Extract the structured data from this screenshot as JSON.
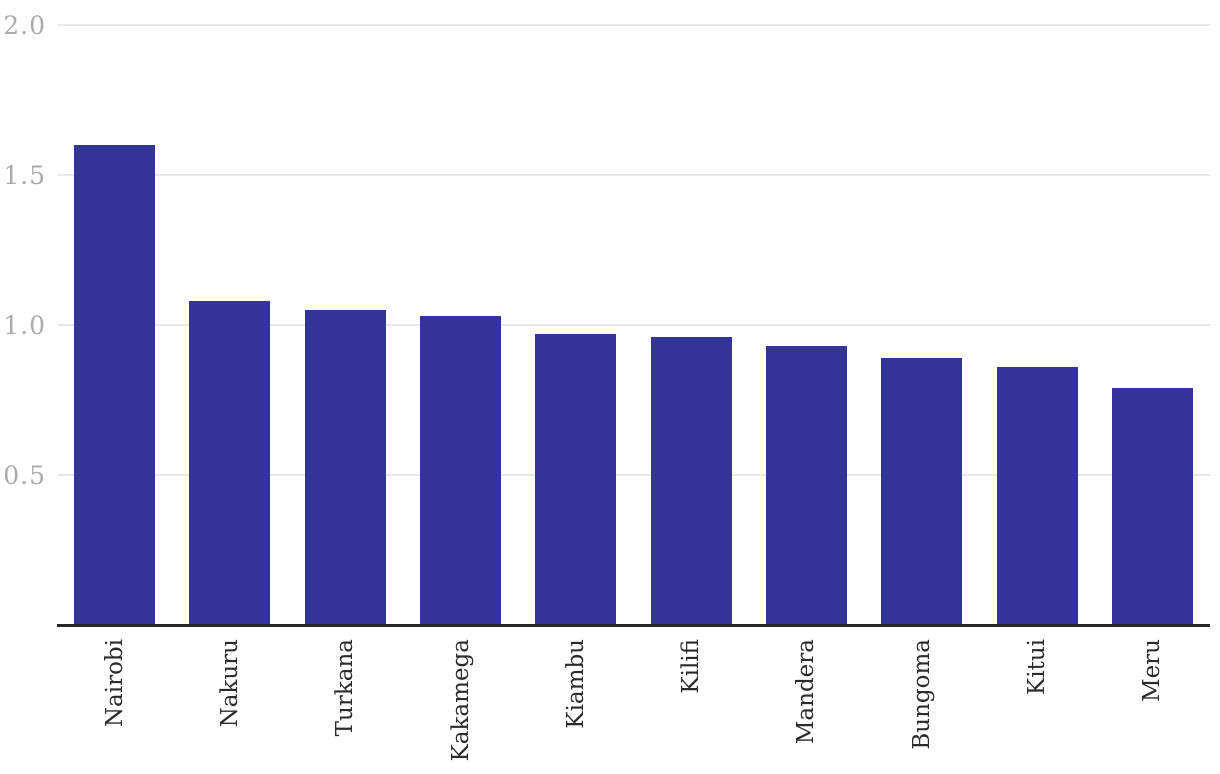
{
  "chart_data": {
    "type": "bar",
    "title": "",
    "xlabel": "",
    "ylabel": "",
    "categories": [
      "Nairobi",
      "Nakuru",
      "Turkana",
      "Kakamega",
      "Kiambu",
      "Kilifi",
      "Mandera",
      "Bungoma",
      "Kitui",
      "Meru"
    ],
    "values": [
      1.6,
      1.08,
      1.05,
      1.03,
      0.97,
      0.96,
      0.93,
      0.89,
      0.86,
      0.79
    ],
    "ylim": [
      0,
      2.0
    ],
    "yticks": [
      0.5,
      1.0,
      1.5,
      2.0
    ],
    "ytick_labels": [
      "0.5",
      "1.0",
      "1.5",
      "2.0"
    ],
    "grid": true,
    "legend": false,
    "xtick_rotation_degrees": 90,
    "colors": {
      "bar": "#333399",
      "gridline": "#e9e9e9",
      "axis_line": "#262626",
      "ytick_text": "#ababab",
      "xtick_text": "#2b2b2b",
      "background": "#ffffff"
    }
  }
}
